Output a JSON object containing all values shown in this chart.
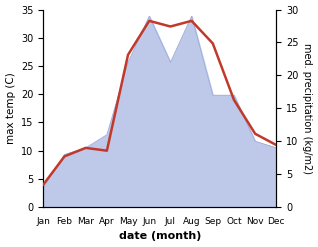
{
  "months": [
    "Jan",
    "Feb",
    "Mar",
    "Apr",
    "May",
    "Jun",
    "Jul",
    "Aug",
    "Sep",
    "Oct",
    "Nov",
    "Dec"
  ],
  "temperature": [
    4,
    9,
    10.5,
    10,
    27,
    33,
    32,
    33,
    29,
    19,
    13,
    11
  ],
  "precipitation": [
    3,
    8,
    9,
    11,
    22,
    29,
    22,
    29,
    17,
    17,
    10,
    9
  ],
  "temp_ylim": [
    0,
    35
  ],
  "precip_ylim": [
    0,
    30
  ],
  "temp_color": "#c0392b",
  "precip_fill_color": "#bec8e8",
  "precip_edge_color": "#9aa8d8",
  "xlabel": "date (month)",
  "ylabel_left": "max temp (C)",
  "ylabel_right": "med. precipitation (kg/m2)",
  "fig_width": 3.18,
  "fig_height": 2.47,
  "dpi": 100
}
